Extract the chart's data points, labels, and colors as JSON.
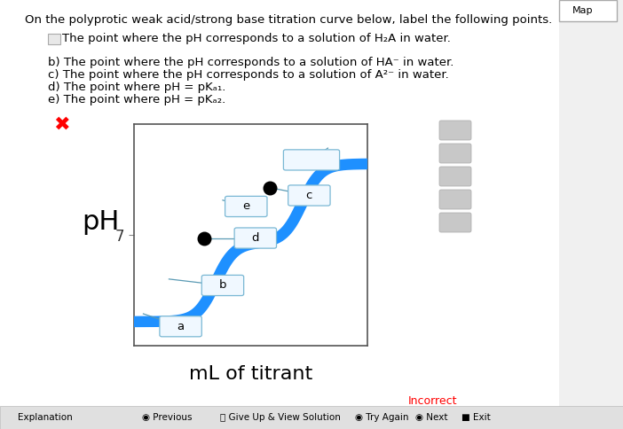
{
  "title": "On the polyprotic weak acid/strong base titration curve below, label the following points.",
  "line_a": "The point where the pH corresponds to a solution of H₂A in water.",
  "line_b": "b) The point where the pH corresponds to a solution of HA⁻ in water.",
  "line_c": "c) The point where the pH corresponds to a solution of A²⁻ in water.",
  "line_d": "d) The point where pH = pKₐ₁.",
  "line_e": "e) The point where pH = pKₐ₂.",
  "xlabel": "mL of titrant",
  "ylabel": "pH",
  "curve_color": "#1E90FF",
  "curve_linewidth": 9,
  "dot_color": "black",
  "box_facecolor": "#f0f8ff",
  "box_edgecolor": "#7ab8d4",
  "line_color": "#5a9ab4",
  "bg_color": "#f0f0f0",
  "plot_bg": "white",
  "border_color": "#555555",
  "text_color": "black",
  "seven_color": "#333333",
  "fig_width": 7.02,
  "fig_height": 4.84,
  "xlim": [
    0,
    10
  ],
  "ylim": [
    0,
    14
  ],
  "dot1_x": 3.0,
  "dot1_y": 6.8,
  "dot2_x": 5.8,
  "dot2_y": 10.0
}
